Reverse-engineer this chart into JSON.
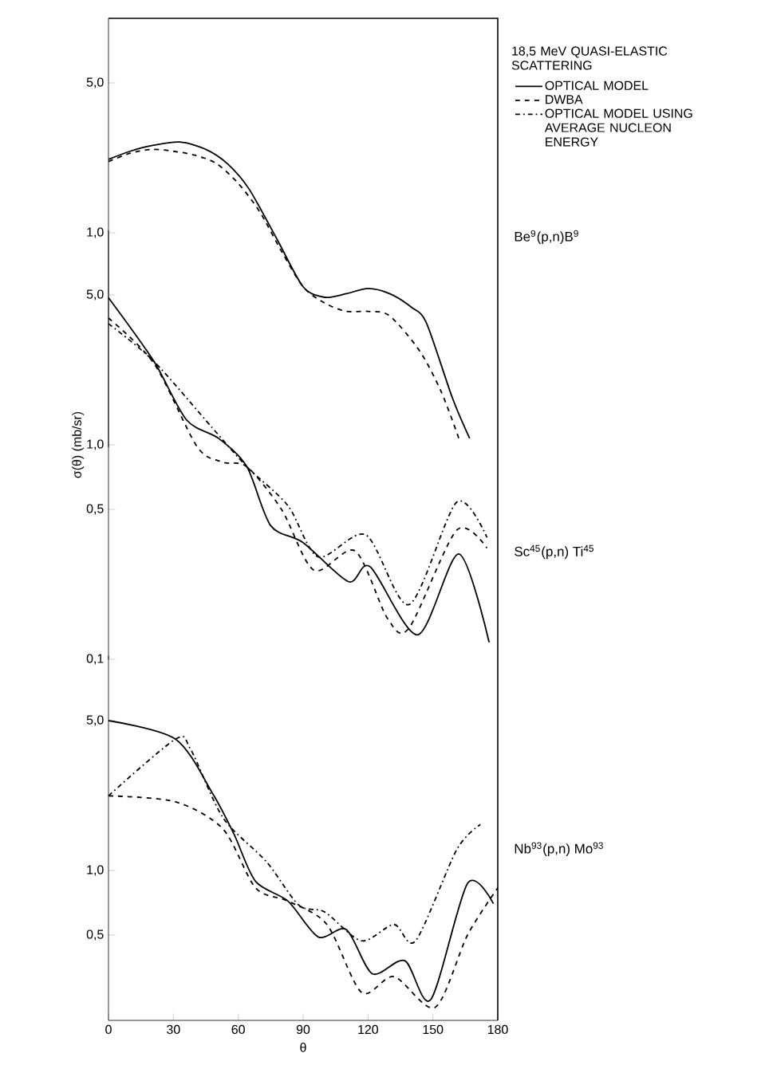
{
  "chart_data": [
    {
      "type": "line",
      "xlim": [
        0,
        180
      ],
      "ylim": [
        0.1,
        10
      ],
      "log": true,
      "tick_labels": "y",
      "yticks": [
        {
          "value": 1,
          "label": "1,0"
        },
        {
          "value": 5,
          "label": "5,0"
        }
      ],
      "annotations": [
        "Be$^{9}$(p,n)B$^{9}$"
      ],
      "series": [
        {
          "color": "#000000",
          "line_style": "solid",
          "x": [
            0,
            10,
            20,
            33,
            45,
            55,
            65,
            78,
            90,
            100,
            110,
            120,
            130,
            140,
            147,
            159,
            167
          ],
          "values": [
            2.2,
            2.4,
            2.55,
            2.65,
            2.45,
            2.1,
            1.6,
            0.93,
            0.56,
            0.5,
            0.52,
            0.55,
            0.52,
            0.45,
            0.38,
            0.17,
            0.11
          ]
        },
        {
          "color": "#000000",
          "line_style": "dashed",
          "x": [
            0,
            10,
            20,
            30,
            40,
            50,
            60,
            70,
            80,
            90,
            100,
            110,
            120,
            130,
            144,
            154,
            162
          ],
          "values": [
            2.15,
            2.35,
            2.45,
            2.4,
            2.3,
            2.1,
            1.7,
            1.25,
            0.82,
            0.56,
            0.47,
            0.43,
            0.43,
            0.41,
            0.28,
            0.18,
            0.11
          ]
        }
      ]
    },
    {
      "type": "line",
      "xlim": [
        0,
        180
      ],
      "ylim": [
        0.1,
        10
      ],
      "log": true,
      "tick_labels": "y",
      "ylabel": "σ(θ) (mb/sr)",
      "yticks": [
        {
          "value": 0.1,
          "label": "0,1"
        },
        {
          "value": 0.5,
          "label": "0,5"
        },
        {
          "value": 1,
          "label": "1,0"
        },
        {
          "value": 5,
          "label": "5,0"
        }
      ],
      "annotations": [
        "Sc$^{45}$(p,n) Ti$^{45}$"
      ],
      "legend": "right",
      "legend_title": "18,5 MeV QUASI-ELASTIC SCATTERING",
      "series": [
        {
          "name": "OPTICAL MODEL",
          "color": "#000000",
          "line_style": "solid",
          "x": [
            0,
            21,
            36,
            51,
            64,
            75,
            90,
            111,
            121,
            143,
            162,
            176
          ],
          "values": [
            4.85,
            2.45,
            1.31,
            1.07,
            0.79,
            0.42,
            0.35,
            0.23,
            0.27,
            0.13,
            0.31,
            0.12
          ]
        },
        {
          "name": "DWBA",
          "color": "#000000",
          "line_style": "dashed",
          "x": [
            0,
            21,
            41,
            53,
            64,
            80,
            95,
            114,
            129,
            139,
            161,
            175
          ],
          "values": [
            3.9,
            2.4,
            0.98,
            0.83,
            0.79,
            0.5,
            0.26,
            0.32,
            0.155,
            0.14,
            0.4,
            0.33
          ]
        },
        {
          "name": "OPTICAL MODEL USING AVERAGE NUCLEON ENERGY",
          "color": "#000000",
          "line_style": "dashdot",
          "x": [
            0,
            21,
            48,
            64,
            83,
            97,
            119,
            139,
            161,
            175
          ],
          "values": [
            3.67,
            2.45,
            1.2,
            0.79,
            0.52,
            0.3,
            0.38,
            0.18,
            0.54,
            0.37
          ]
        }
      ]
    },
    {
      "type": "line",
      "xlim": [
        0,
        180
      ],
      "ylim": [
        0.2,
        10
      ],
      "log": true,
      "xlabel": "θ",
      "xticks": [
        0,
        30,
        60,
        90,
        120,
        150,
        180
      ],
      "yticks": [
        {
          "value": 0.5,
          "label": "0,5"
        },
        {
          "value": 1,
          "label": "1,0"
        },
        {
          "value": 5,
          "label": "5,0"
        }
      ],
      "annotations": [
        "Nb$^{93}$(p,n) Mo$^{93}$"
      ],
      "series": [
        {
          "color": "#000000",
          "line_style": "solid",
          "x": [
            0,
            31,
            48,
            58,
            68,
            83,
            97,
            110,
            122,
            137,
            149,
            166,
            178
          ],
          "values": [
            5.0,
            4.1,
            2.3,
            1.48,
            0.89,
            0.72,
            0.49,
            0.53,
            0.33,
            0.38,
            0.25,
            0.87,
            0.7
          ]
        },
        {
          "color": "#000000",
          "line_style": "dashed",
          "x": [
            0,
            31,
            53,
            68,
            83,
            101,
            117,
            132,
            151,
            166,
            180
          ],
          "values": [
            2.23,
            2.09,
            1.56,
            0.83,
            0.72,
            0.56,
            0.27,
            0.32,
            0.23,
            0.5,
            0.83
          ]
        },
        {
          "color": "#000000",
          "line_style": "dashdot",
          "x": [
            0,
            31,
            38,
            53,
            73,
            88,
            100,
            117,
            132,
            142,
            161,
            172
          ],
          "values": [
            2.23,
            4.1,
            3.67,
            1.76,
            1.1,
            0.69,
            0.64,
            0.47,
            0.56,
            0.47,
            1.25,
            1.64
          ]
        }
      ]
    }
  ]
}
